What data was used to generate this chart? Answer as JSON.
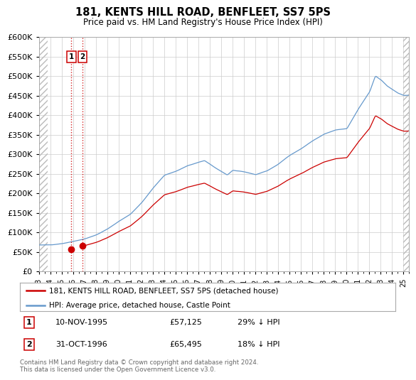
{
  "title": "181, KENTS HILL ROAD, BENFLEET, SS7 5PS",
  "subtitle": "Price paid vs. HM Land Registry's House Price Index (HPI)",
  "legend_line1": "181, KENTS HILL ROAD, BENFLEET, SS7 5PS (detached house)",
  "legend_line2": "HPI: Average price, detached house, Castle Point",
  "footer": "Contains HM Land Registry data © Crown copyright and database right 2024.\nThis data is licensed under the Open Government Licence v3.0.",
  "table": [
    {
      "num": "1",
      "date": "10-NOV-1995",
      "price": "£57,125",
      "change": "29% ↓ HPI"
    },
    {
      "num": "2",
      "date": "31-OCT-1996",
      "price": "£65,495",
      "change": "18% ↓ HPI"
    }
  ],
  "sale_dates_year": [
    1995.86,
    1996.83
  ],
  "sale_prices": [
    57125,
    65495
  ],
  "ylim": [
    0,
    600000
  ],
  "xlim_year": [
    1993.0,
    2025.5
  ],
  "hatch_left_end_year": 1993.75,
  "hatch_right_start_year": 2025.0,
  "red_color": "#cc0000",
  "blue_color": "#6699cc",
  "hatch_color": "#cccccc",
  "grid_color": "#cccccc",
  "bg_color": "#ffffff",
  "x_tick_years": [
    1993,
    1994,
    1995,
    1996,
    1997,
    1998,
    1999,
    2000,
    2001,
    2002,
    2003,
    2004,
    2005,
    2006,
    2007,
    2008,
    2009,
    2010,
    2011,
    2012,
    2013,
    2014,
    2015,
    2016,
    2017,
    2018,
    2019,
    2020,
    2021,
    2022,
    2023,
    2024,
    2025
  ]
}
